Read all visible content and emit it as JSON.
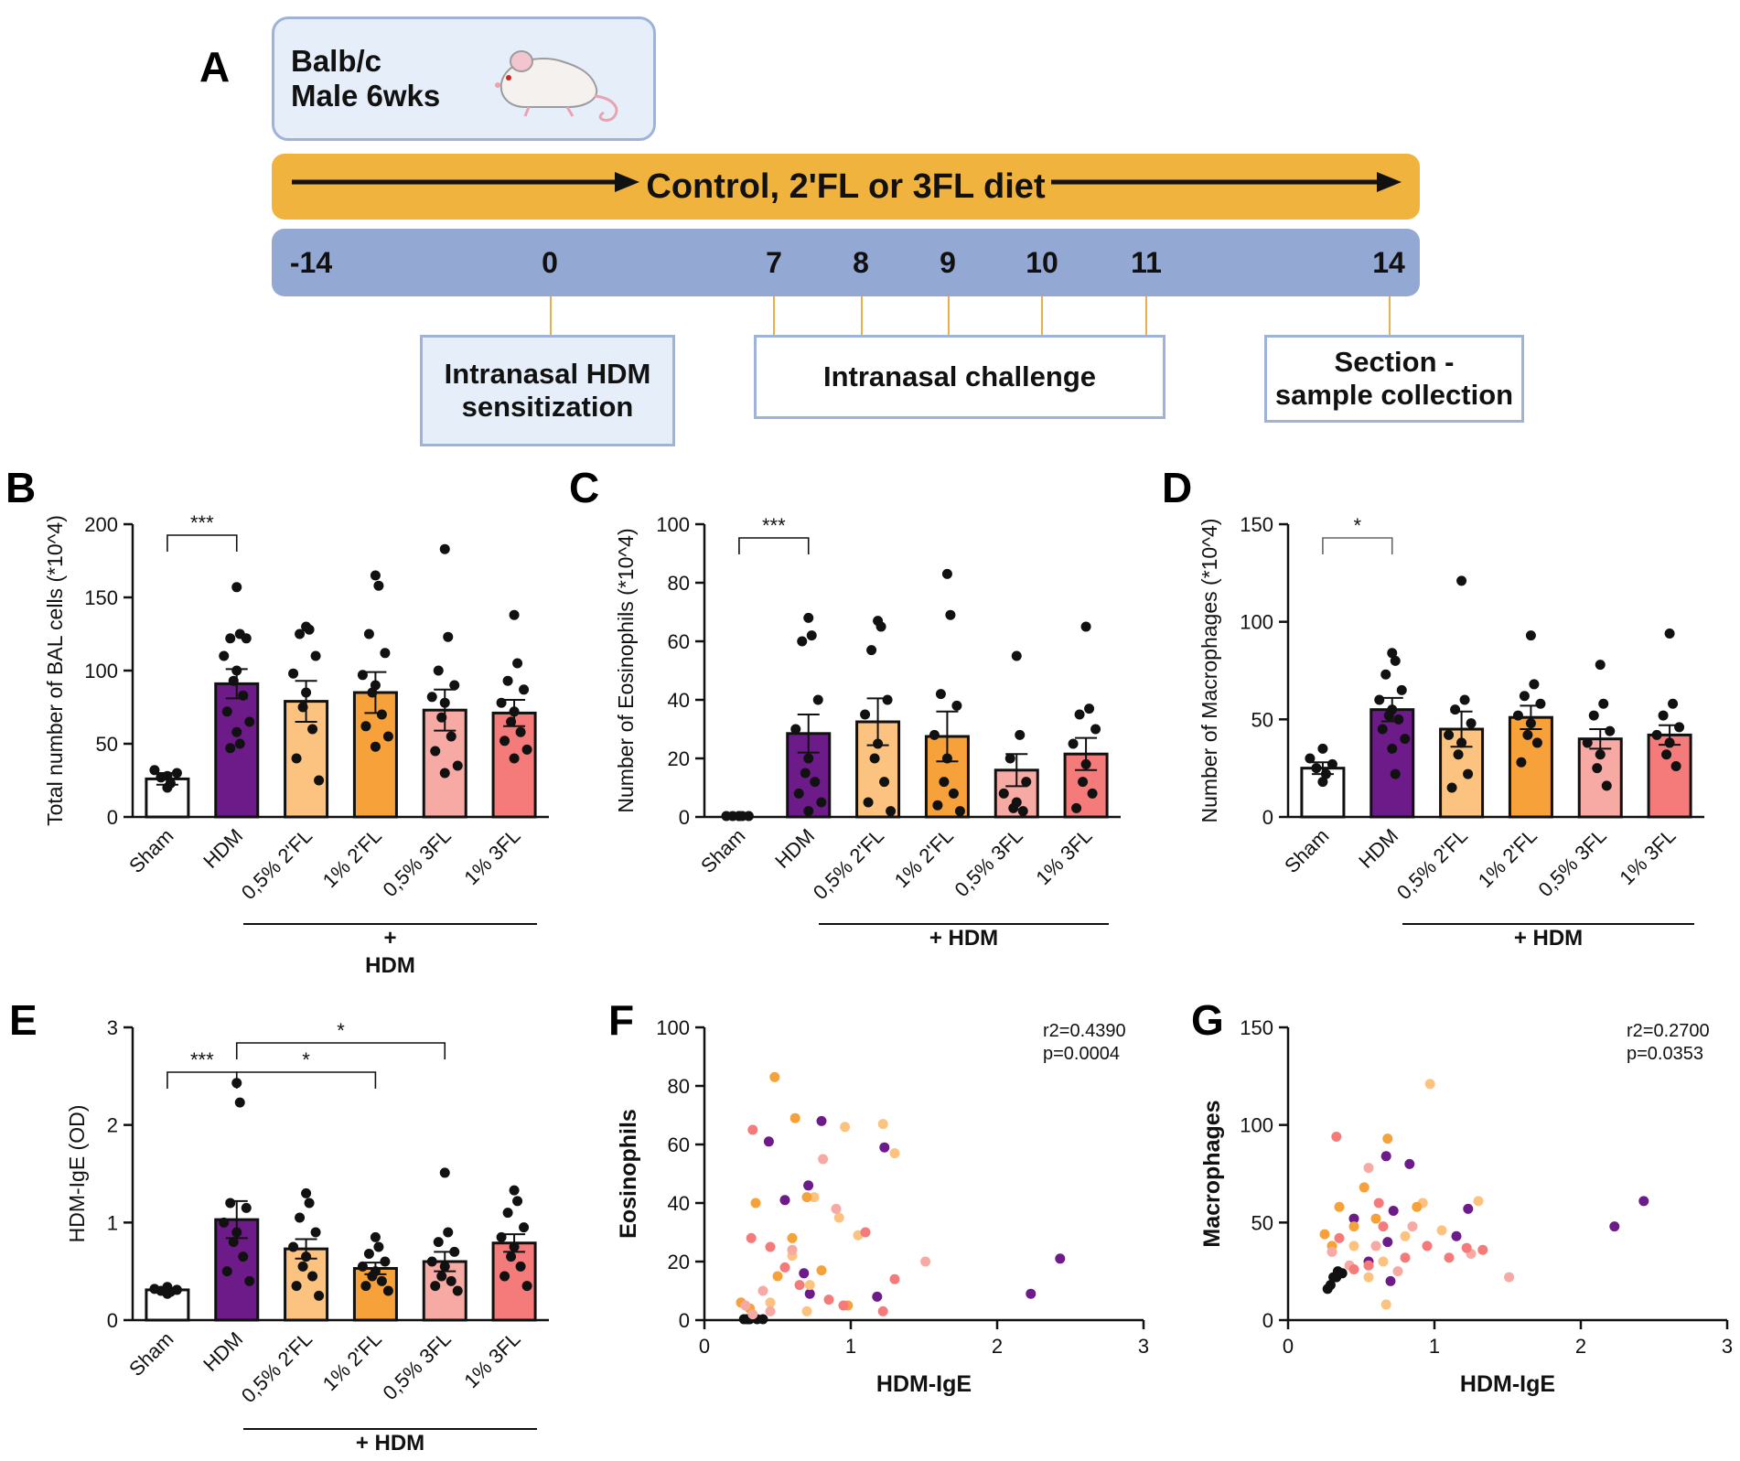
{
  "panel_letters": {
    "A": "A",
    "B": "B",
    "C": "C",
    "D": "D",
    "E": "E",
    "F": "F",
    "G": "G"
  },
  "colors": {
    "sham": "#ffffff",
    "hdm": "#6e1b8a",
    "fl2_05": "#fbc37f",
    "fl2_1": "#f6a13a",
    "fl3_05": "#f7a9a4",
    "fl3_1": "#f57b7b",
    "diet_bar": "#f0b33d",
    "day_bar": "#93a8d3",
    "box_bg": "#e6eefa",
    "box_border": "#9fb3d8"
  },
  "schema": {
    "mouse_strain": "Balb/c",
    "mouse_sex_age": "Male 6wks",
    "diet_label": "Control, 2'FL or 3FL diet",
    "days": [
      "-14",
      "0",
      "7",
      "8",
      "9",
      "10",
      "11",
      "14"
    ],
    "boxes": {
      "sensitization": [
        "Intranasal HDM",
        "sensitization"
      ],
      "challenge": "Intranasal challenge",
      "collection": [
        "Section -",
        "sample collection"
      ]
    }
  },
  "chart_data": [
    {
      "id": "B",
      "type": "bar",
      "ylabel": "Total number of BAL cells (*10^4)",
      "ylim": [
        0,
        200
      ],
      "yticks": [
        0,
        50,
        100,
        150,
        200
      ],
      "categories": [
        "Sham",
        "HDM",
        "0,5% 2'FL",
        "1% 2'FL",
        "0,5% 3FL",
        "1% 3FL"
      ],
      "values": [
        26,
        91,
        79,
        85,
        73,
        71
      ],
      "sem": [
        4,
        10,
        14,
        14,
        14,
        9
      ],
      "points": [
        [
          20,
          23,
          27,
          30,
          32,
          28
        ],
        [
          157,
          125,
          122,
          122,
          110,
          100,
          93,
          83,
          72,
          65,
          58,
          50,
          47
        ],
        [
          130,
          128,
          125,
          110,
          98,
          85,
          75,
          60,
          40,
          25
        ],
        [
          165,
          158,
          125,
          112,
          97,
          90,
          85,
          70,
          62,
          55,
          48
        ],
        [
          183,
          123,
          100,
          90,
          82,
          78,
          68,
          55,
          45,
          35,
          30
        ],
        [
          138,
          105,
          93,
          87,
          78,
          72,
          65,
          58,
          52,
          46,
          40
        ]
      ],
      "group_label": "+\nHDM",
      "group_label_lines": [
        "+",
        "HDM"
      ],
      "significance": [
        {
          "from": 0,
          "to": 1,
          "label": "***"
        }
      ]
    },
    {
      "id": "C",
      "type": "bar",
      "ylabel": "Number of Eosinophils (*10^4)",
      "ylim": [
        0,
        100
      ],
      "yticks": [
        0,
        20,
        40,
        60,
        80,
        100
      ],
      "categories": [
        "Sham",
        "HDM",
        "0,5% 2'FL",
        "1% 2'FL",
        "0,5% 3FL",
        "1% 3FL"
      ],
      "values": [
        0,
        28.5,
        32.5,
        27.5,
        16,
        21.5
      ],
      "sem": [
        0,
        6.5,
        8,
        8.5,
        5.5,
        5.5
      ],
      "points": [
        [
          0.3,
          0.3,
          0.3,
          0.3,
          0.3,
          0.3
        ],
        [
          68,
          62,
          60,
          40,
          30,
          20,
          15,
          12,
          8,
          5,
          2
        ],
        [
          67,
          65,
          57,
          40,
          35,
          25,
          20,
          12,
          5,
          2
        ],
        [
          83,
          69,
          42,
          38,
          28,
          20,
          12,
          8,
          4,
          2
        ],
        [
          55,
          28,
          20,
          12,
          8,
          5,
          3,
          2
        ],
        [
          65,
          37,
          35,
          30,
          25,
          18,
          12,
          8,
          3
        ]
      ],
      "group_label": "+ HDM",
      "group_label_lines": [
        "+ HDM"
      ],
      "significance": [
        {
          "from": 0,
          "to": 1,
          "label": "***"
        }
      ]
    },
    {
      "id": "D",
      "type": "bar",
      "ylabel": "Number of Macrophages (*10^4)",
      "ylim": [
        0,
        150
      ],
      "yticks": [
        0,
        50,
        100,
        150
      ],
      "categories": [
        "Sham",
        "HDM",
        "0,5% 2'FL",
        "1% 2'FL",
        "0,5% 3FL",
        "1% 3FL"
      ],
      "values": [
        25,
        55,
        45,
        51,
        40,
        42
      ],
      "sem": [
        3,
        6,
        9,
        6,
        5,
        5
      ],
      "points": [
        [
          18,
          22,
          25,
          27,
          30,
          35
        ],
        [
          84,
          80,
          73,
          65,
          60,
          55,
          52,
          50,
          45,
          40,
          35,
          22
        ],
        [
          121,
          60,
          55,
          48,
          42,
          38,
          32,
          22,
          15
        ],
        [
          93,
          68,
          62,
          58,
          52,
          48,
          42,
          38,
          28
        ],
        [
          78,
          58,
          52,
          44,
          38,
          32,
          25,
          16
        ],
        [
          94,
          58,
          52,
          46,
          42,
          38,
          32,
          26
        ]
      ],
      "group_label": "+ HDM",
      "group_label_lines": [
        "+ HDM"
      ],
      "significance": [
        {
          "from": 0,
          "to": 1,
          "label": "*"
        }
      ]
    },
    {
      "id": "E",
      "type": "bar",
      "ylabel": "HDM-IgE (OD)",
      "ylim": [
        0,
        3
      ],
      "yticks": [
        0,
        1,
        2,
        3
      ],
      "categories": [
        "Sham",
        "HDM",
        "0,5% 2'FL",
        "1% 2'FL",
        "0,5% 3FL",
        "1% 3FL"
      ],
      "values": [
        0.31,
        1.03,
        0.73,
        0.53,
        0.6,
        0.79
      ],
      "sem": [
        0.02,
        0.19,
        0.1,
        0.06,
        0.1,
        0.09
      ],
      "points": [
        [
          0.27,
          0.29,
          0.3,
          0.31,
          0.32,
          0.34
        ],
        [
          2.43,
          2.23,
          1.2,
          1.15,
          1.0,
          0.9,
          0.8,
          0.65,
          0.5,
          0.4
        ],
        [
          1.3,
          1.2,
          1.05,
          0.9,
          0.75,
          0.65,
          0.55,
          0.45,
          0.35,
          0.25
        ],
        [
          0.85,
          0.75,
          0.68,
          0.6,
          0.55,
          0.5,
          0.45,
          0.4,
          0.35,
          0.3
        ],
        [
          1.51,
          0.9,
          0.8,
          0.7,
          0.6,
          0.55,
          0.45,
          0.4,
          0.35,
          0.3
        ],
        [
          1.33,
          1.22,
          1.1,
          0.95,
          0.85,
          0.75,
          0.65,
          0.55,
          0.45,
          0.35
        ]
      ],
      "group_label": "+ HDM",
      "group_label_lines": [
        "+ HDM"
      ],
      "significance": [
        {
          "from": 0,
          "to": 1,
          "label": "***"
        },
        {
          "from": 1,
          "to": 3,
          "label": "*"
        },
        {
          "from": 1,
          "to": 4,
          "label": "*"
        }
      ]
    },
    {
      "id": "F",
      "type": "scatter",
      "xlabel": "HDM-IgE",
      "ylabel": "Eosinophils",
      "xlim": [
        0,
        3
      ],
      "ylim": [
        0,
        100
      ],
      "xticks": [
        0,
        1,
        2,
        3
      ],
      "yticks": [
        0,
        20,
        40,
        60,
        80,
        100
      ],
      "stats": [
        "r2=0.4390",
        "p=0.0004"
      ],
      "points": [
        {
          "x": 0.27,
          "y": 0.3,
          "g": 0
        },
        {
          "x": 0.29,
          "y": 0.3,
          "g": 0
        },
        {
          "x": 0.3,
          "y": 0.3,
          "g": 0
        },
        {
          "x": 0.31,
          "y": 0.3,
          "g": 0
        },
        {
          "x": 0.36,
          "y": 0.3,
          "g": 0
        },
        {
          "x": 0.4,
          "y": 0.3,
          "g": 0
        },
        {
          "x": 2.43,
          "y": 21,
          "g": 1
        },
        {
          "x": 2.23,
          "y": 9,
          "g": 1
        },
        {
          "x": 1.23,
          "y": 59,
          "g": 1
        },
        {
          "x": 1.18,
          "y": 8,
          "g": 1
        },
        {
          "x": 0.8,
          "y": 68,
          "g": 1
        },
        {
          "x": 0.71,
          "y": 46,
          "g": 1
        },
        {
          "x": 0.55,
          "y": 41,
          "g": 1
        },
        {
          "x": 0.68,
          "y": 16,
          "g": 1
        },
        {
          "x": 0.44,
          "y": 61,
          "g": 1
        },
        {
          "x": 0.72,
          "y": 9,
          "g": 1
        },
        {
          "x": 1.22,
          "y": 67,
          "g": 2
        },
        {
          "x": 0.96,
          "y": 66,
          "g": 2
        },
        {
          "x": 1.3,
          "y": 57,
          "g": 2
        },
        {
          "x": 0.75,
          "y": 42,
          "g": 2
        },
        {
          "x": 0.92,
          "y": 35,
          "g": 2
        },
        {
          "x": 1.05,
          "y": 29,
          "g": 2
        },
        {
          "x": 0.6,
          "y": 22,
          "g": 2
        },
        {
          "x": 0.72,
          "y": 12,
          "g": 2
        },
        {
          "x": 0.45,
          "y": 6,
          "g": 2
        },
        {
          "x": 0.7,
          "y": 3,
          "g": 2
        },
        {
          "x": 0.48,
          "y": 83,
          "g": 3
        },
        {
          "x": 0.62,
          "y": 69,
          "g": 3
        },
        {
          "x": 0.7,
          "y": 42,
          "g": 3
        },
        {
          "x": 0.35,
          "y": 40,
          "g": 3
        },
        {
          "x": 0.6,
          "y": 28,
          "g": 3
        },
        {
          "x": 0.8,
          "y": 17,
          "g": 3
        },
        {
          "x": 0.5,
          "y": 15,
          "g": 3
        },
        {
          "x": 0.98,
          "y": 5,
          "g": 3
        },
        {
          "x": 0.31,
          "y": 4,
          "g": 3
        },
        {
          "x": 0.25,
          "y": 6,
          "g": 3
        },
        {
          "x": 0.81,
          "y": 55,
          "g": 4
        },
        {
          "x": 0.6,
          "y": 24,
          "g": 4
        },
        {
          "x": 0.9,
          "y": 38,
          "g": 4
        },
        {
          "x": 0.4,
          "y": 10,
          "g": 4
        },
        {
          "x": 0.28,
          "y": 5,
          "g": 4
        },
        {
          "x": 0.45,
          "y": 3,
          "g": 4
        },
        {
          "x": 1.51,
          "y": 20,
          "g": 4
        },
        {
          "x": 0.33,
          "y": 2,
          "g": 4
        },
        {
          "x": 0.33,
          "y": 65,
          "g": 5
        },
        {
          "x": 1.22,
          "y": 3,
          "g": 5
        },
        {
          "x": 1.1,
          "y": 30,
          "g": 5
        },
        {
          "x": 0.95,
          "y": 5,
          "g": 5
        },
        {
          "x": 0.85,
          "y": 7,
          "g": 5
        },
        {
          "x": 0.65,
          "y": 12,
          "g": 5
        },
        {
          "x": 0.55,
          "y": 18,
          "g": 5
        },
        {
          "x": 0.45,
          "y": 25,
          "g": 5
        },
        {
          "x": 1.3,
          "y": 14,
          "g": 5
        },
        {
          "x": 0.32,
          "y": 28,
          "g": 5
        }
      ]
    },
    {
      "id": "G",
      "type": "scatter",
      "xlabel": "HDM-IgE",
      "ylabel": "Macrophages",
      "xlim": [
        0,
        3
      ],
      "ylim": [
        0,
        150
      ],
      "xticks": [
        0,
        1,
        2,
        3
      ],
      "yticks": [
        0,
        50,
        100,
        150
      ],
      "stats": [
        "r2=0.2700",
        "p=0.0353"
      ],
      "points": [
        {
          "x": 0.27,
          "y": 16,
          "g": 0
        },
        {
          "x": 0.29,
          "y": 18,
          "g": 0
        },
        {
          "x": 0.31,
          "y": 22,
          "g": 0
        },
        {
          "x": 0.33,
          "y": 22,
          "g": 0
        },
        {
          "x": 0.37,
          "y": 24,
          "g": 0
        },
        {
          "x": 0.34,
          "y": 25,
          "g": 0
        },
        {
          "x": 2.43,
          "y": 61,
          "g": 1
        },
        {
          "x": 2.23,
          "y": 48,
          "g": 1
        },
        {
          "x": 1.23,
          "y": 57,
          "g": 1
        },
        {
          "x": 1.15,
          "y": 43,
          "g": 1
        },
        {
          "x": 0.83,
          "y": 80,
          "g": 1
        },
        {
          "x": 0.67,
          "y": 84,
          "g": 1
        },
        {
          "x": 0.72,
          "y": 56,
          "g": 1
        },
        {
          "x": 0.45,
          "y": 52,
          "g": 1
        },
        {
          "x": 0.68,
          "y": 40,
          "g": 1
        },
        {
          "x": 0.7,
          "y": 20,
          "g": 1
        },
        {
          "x": 0.55,
          "y": 30,
          "g": 1
        },
        {
          "x": 0.97,
          "y": 121,
          "g": 2
        },
        {
          "x": 1.3,
          "y": 61,
          "g": 2
        },
        {
          "x": 0.92,
          "y": 60,
          "g": 2
        },
        {
          "x": 1.05,
          "y": 46,
          "g": 2
        },
        {
          "x": 0.8,
          "y": 43,
          "g": 2
        },
        {
          "x": 0.45,
          "y": 38,
          "g": 2
        },
        {
          "x": 0.65,
          "y": 30,
          "g": 2
        },
        {
          "x": 0.55,
          "y": 22,
          "g": 2
        },
        {
          "x": 0.67,
          "y": 8,
          "g": 2
        },
        {
          "x": 0.68,
          "y": 93,
          "g": 3
        },
        {
          "x": 0.52,
          "y": 68,
          "g": 3
        },
        {
          "x": 0.35,
          "y": 58,
          "g": 3
        },
        {
          "x": 0.6,
          "y": 52,
          "g": 3
        },
        {
          "x": 0.88,
          "y": 58,
          "g": 3
        },
        {
          "x": 0.45,
          "y": 48,
          "g": 3
        },
        {
          "x": 0.3,
          "y": 38,
          "g": 3
        },
        {
          "x": 0.25,
          "y": 44,
          "g": 3
        },
        {
          "x": 0.55,
          "y": 78,
          "g": 4
        },
        {
          "x": 0.42,
          "y": 28,
          "g": 4
        },
        {
          "x": 1.51,
          "y": 22,
          "g": 4
        },
        {
          "x": 0.85,
          "y": 48,
          "g": 4
        },
        {
          "x": 0.3,
          "y": 35,
          "g": 4
        },
        {
          "x": 0.75,
          "y": 25,
          "g": 4
        },
        {
          "x": 0.6,
          "y": 38,
          "g": 4
        },
        {
          "x": 1.25,
          "y": 34,
          "g": 4
        },
        {
          "x": 0.33,
          "y": 94,
          "g": 5
        },
        {
          "x": 1.33,
          "y": 36,
          "g": 5
        },
        {
          "x": 1.22,
          "y": 37,
          "g": 5
        },
        {
          "x": 1.1,
          "y": 32,
          "g": 5
        },
        {
          "x": 0.95,
          "y": 38,
          "g": 5
        },
        {
          "x": 0.8,
          "y": 32,
          "g": 5
        },
        {
          "x": 0.65,
          "y": 48,
          "g": 5
        },
        {
          "x": 0.55,
          "y": 28,
          "g": 5
        },
        {
          "x": 0.35,
          "y": 42,
          "g": 5
        },
        {
          "x": 0.45,
          "y": 26,
          "g": 5
        },
        {
          "x": 0.62,
          "y": 60,
          "g": 5
        }
      ]
    }
  ]
}
